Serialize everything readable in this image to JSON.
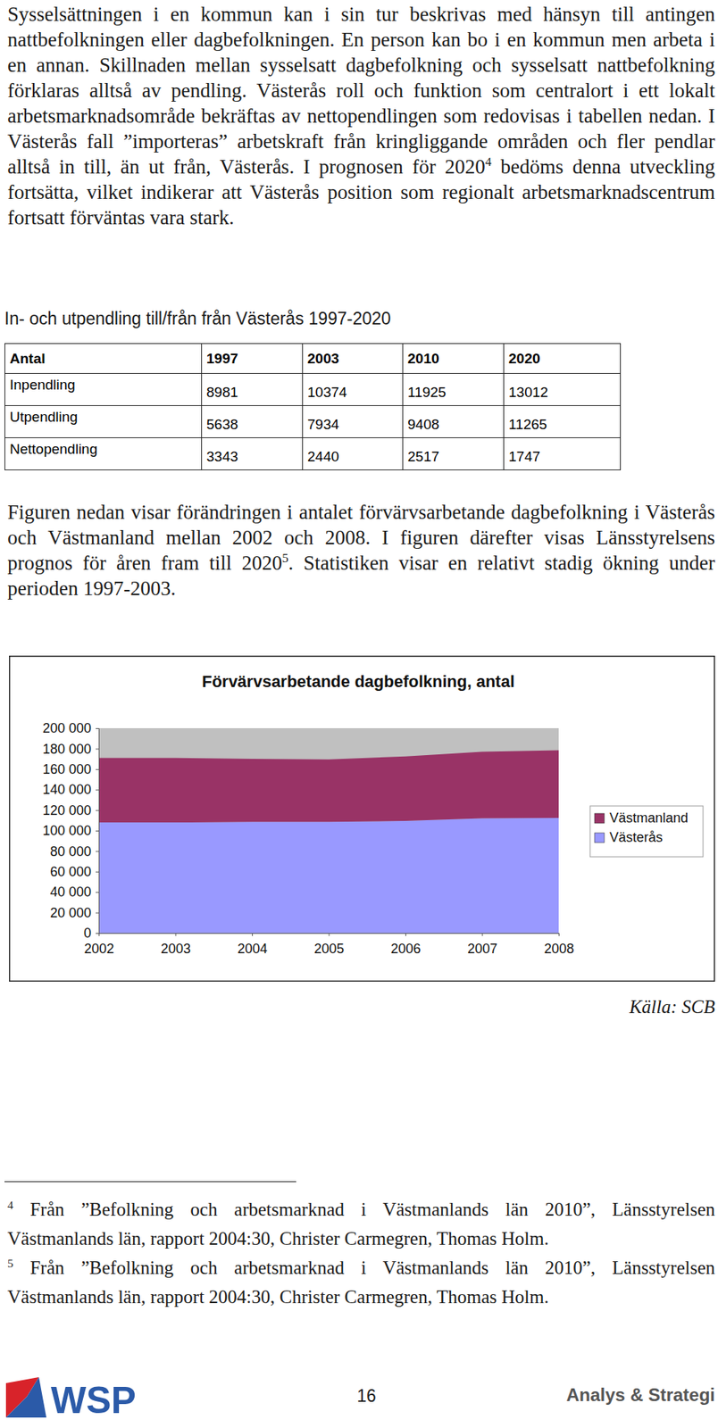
{
  "paragraphs": [
    [
      {
        "text": "Sysselsättningen i en kommun kan i sin tur beskrivas med hänsyn till antingen nattbefolkningen eller dagbefolkningen. En person kan bo i en kommun men arbeta i en annan. Skillnaden mellan sysselsatt dagbefolkning och sysselsatt nattbefolkning förklaras alltså av pendling. Västerås roll och funktion som centralort i ett lokalt arbetsmarknadsområde bekräftas av nettopendlingen som redovisas i tabellen nedan. I Västerås fall ”importeras” arbetskraft från kringliggande områden och fler pendlar alltså in till, än ut från, Västerås. I prognosen för 2020"
      },
      {
        "sup": "4"
      },
      {
        "text": " bedöms denna utveckling fortsätta, vilket indikerar att Västerås position som regionalt arbetsmarknadscentrum fortsatt förväntas vara stark."
      }
    ],
    [
      {
        "text": "Figuren nedan visar förändringen i antalet förvärvsarbetande dagbefolkning i Västerås och Västmanland mellan 2002 och 2008. I figuren därefter visas Länsstyrelsens prognos för åren fram till 2020"
      },
      {
        "sup": "5"
      },
      {
        "text": ". Statistiken visar en relativt stadig ökning under perioden 1997-2003."
      }
    ]
  ],
  "table": {
    "title": "In- och utpendling till/från från Västerås 1997-2020",
    "header": [
      "Antal",
      "1997",
      "2003",
      "2010",
      "2020"
    ],
    "rows": [
      [
        "Inpendling",
        8981,
        10374,
        11925,
        13012
      ],
      [
        "Utpendling",
        5638,
        7934,
        9408,
        11265
      ],
      [
        "Nettopendling",
        3343,
        2440,
        2517,
        1747
      ]
    ]
  },
  "chart_data": {
    "type": "area",
    "title": "Förvärvsarbetande dagbefolkning, antal",
    "categories": [
      "2002",
      "2003",
      "2004",
      "2005",
      "2006",
      "2007",
      "2008"
    ],
    "series": [
      {
        "name": "Västerås",
        "color": "#9999ff",
        "values": [
          108000,
          108000,
          108500,
          108500,
          109500,
          112000,
          112500
        ]
      },
      {
        "name": "Västmanland",
        "color": "#993366",
        "values": [
          63000,
          63000,
          61500,
          61000,
          63000,
          65000,
          66000
        ]
      }
    ],
    "stacked": true,
    "ylim": [
      0,
      200000
    ],
    "yticks": [
      0,
      {
        "value": 20000,
        "label": "20 000"
      },
      {
        "value": 40000,
        "label": "40 000"
      },
      {
        "value": 60000,
        "label": "60 000"
      },
      {
        "value": 80000,
        "label": "80 000"
      },
      {
        "value": 100000,
        "label": "100 000"
      },
      {
        "value": 120000,
        "label": "120 000"
      },
      {
        "value": 140000,
        "label": "140 000"
      },
      {
        "value": 160000,
        "label": "160 000"
      },
      {
        "value": 180000,
        "label": "180 000"
      },
      {
        "value": 200000,
        "label": "200 000"
      }
    ],
    "grid": false,
    "legend": "right"
  },
  "source": "Källa: SCB",
  "footnotes": [
    {
      "mark": "4",
      "text": "Från ”Befolkning och arbetsmarknad i Västmanlands län 2010”, Länsstyrelsen Västmanlands län, rapport 2004:30, Christer Carmegren, Thomas Holm."
    },
    {
      "mark": "5",
      "text": "Från ”Befolkning och arbetsmarknad i Västmanlands län 2010”, Länsstyrelsen Västmanlands län, rapport 2004:30, Christer Carmegren, Thomas Holm."
    }
  ],
  "footer": {
    "logo": "WSP",
    "page": 16,
    "label": "Analys & Strategi"
  }
}
